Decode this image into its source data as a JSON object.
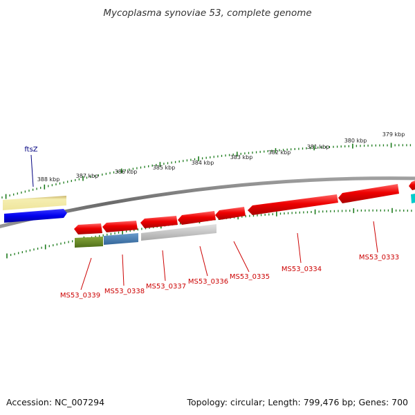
{
  "title": "Mycoplasma synoviae 53, complete genome",
  "accession": "Accession: NC_007294",
  "summary": "Topology: circular; Length: 799,476 bp; Genes: 700",
  "kbp_labels": [
    "379 kbp",
    "380 kbp",
    "381 kbp",
    "382 kbp",
    "383 kbp",
    "384 kbp",
    "385 kbp",
    "386 kbp",
    "387 kbp",
    "388 kbp"
  ],
  "genes": [
    {
      "name": "ftsZ",
      "strand": "forward",
      "color": "#0000ee"
    },
    {
      "name": "MS53_0333",
      "strand": "reverse",
      "color": "#ee0000"
    },
    {
      "name": "MS53_0334",
      "strand": "reverse",
      "color": "#ee0000"
    },
    {
      "name": "MS53_0335",
      "strand": "reverse",
      "color": "#ee0000"
    },
    {
      "name": "MS53_0336",
      "strand": "reverse",
      "color": "#ee0000"
    },
    {
      "name": "MS53_0337",
      "strand": "reverse",
      "color": "#ee0000"
    },
    {
      "name": "MS53_0338",
      "strand": "reverse",
      "color": "#ee0000"
    },
    {
      "name": "MS53_0339",
      "strand": "reverse",
      "color": "#ee0000"
    }
  ],
  "colors": {
    "backbone": "#7a7a7a",
    "tick": "#1a7a1a",
    "forward_cds": "#0000ee",
    "reverse_cds": "#ee0000",
    "gene_label": "#cc0000",
    "ftsz_label": "#000080",
    "cog_tan": "#f2e9a4",
    "cog_green": "#6b8e23",
    "cog_steelblue": "#4682b4",
    "cog_gray": "#c0c0c0",
    "cog_cyan": "#00cccc"
  }
}
